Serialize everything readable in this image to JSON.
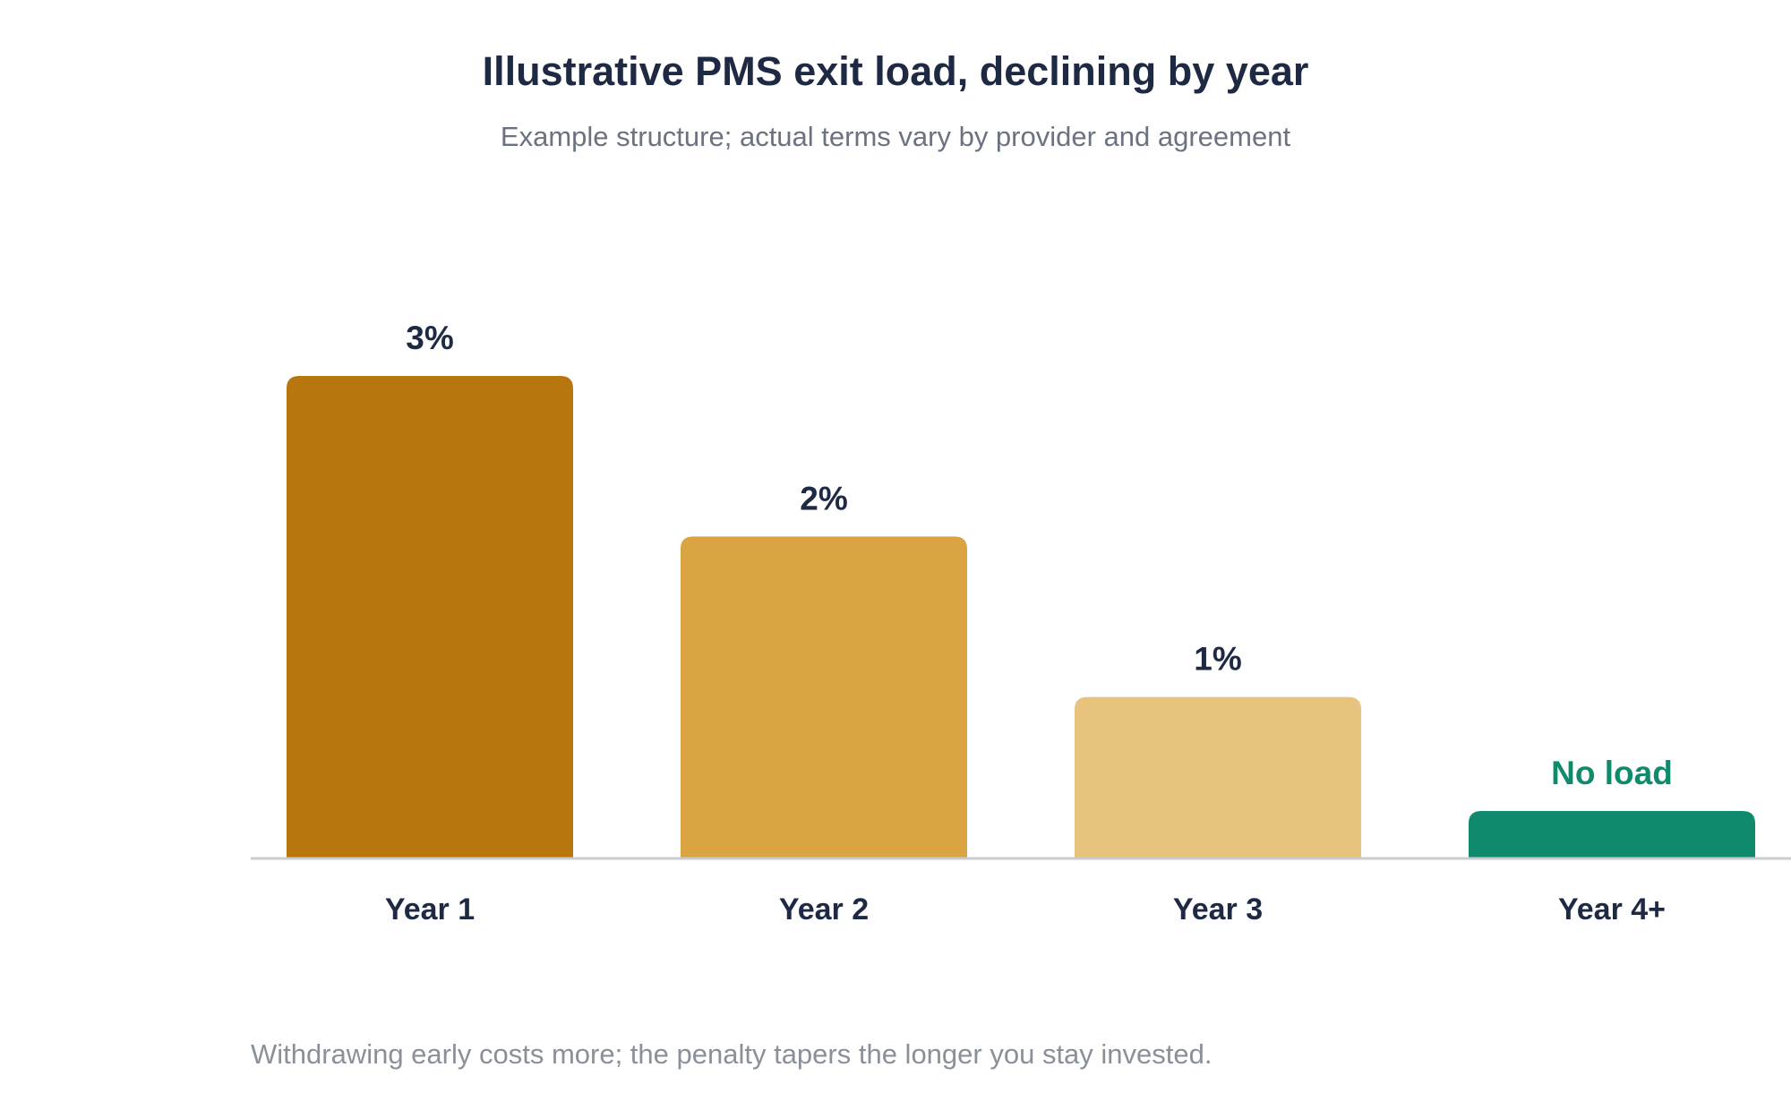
{
  "chart_data": {
    "type": "bar",
    "title": "Illustrative PMS exit load, declining by year",
    "subtitle": "Example structure; actual terms vary by provider and agreement",
    "categories": [
      "Year 1",
      "Year 2",
      "Year 3",
      "Year 4+"
    ],
    "values": [
      3,
      2,
      1,
      0
    ],
    "data_labels": [
      "3%",
      "2%",
      "1%",
      "No load"
    ],
    "colors": [
      "#b8760e",
      "#d9a441",
      "#e7c37d",
      "#108a6c"
    ],
    "data_label_colors": [
      "#1e2a44",
      "#1e2a44",
      "#1e2a44",
      "#108a6c"
    ],
    "ylim": [
      0,
      3
    ],
    "grid": false,
    "xlabel": "",
    "ylabel": "",
    "footnote": "Withdrawing early costs more; the penalty tapers the longer you stay invested."
  }
}
